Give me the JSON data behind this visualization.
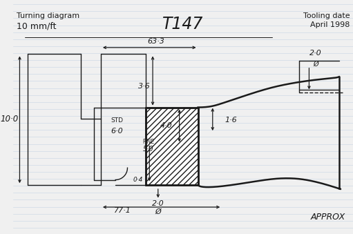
{
  "title_left_line1": "Turning diagram",
  "title_left_line2": "10 mm/ft",
  "part_number": "T147",
  "tooling_date_label": "Tooling date",
  "tooling_date": "April 1998",
  "approx_label": "APPROX",
  "dim_633": "63·3",
  "dim_36": "3·6",
  "dim_40": "4·0",
  "dim_16": "1·6",
  "dim_100": "10·0",
  "dim_std": "STD",
  "dim_60": "6·0",
  "dim_fine": "FINE",
  "dim_50": "5·0",
  "dim_04": "0·4",
  "dim_20a": "2·0",
  "dim_20b": "2·0",
  "dim_771": "77·1",
  "bg_color": "#f0f0f0",
  "line_color": "#1a1a1a",
  "ruled_line_color": "#b8cce0",
  "ruled_line_alpha": 0.6
}
